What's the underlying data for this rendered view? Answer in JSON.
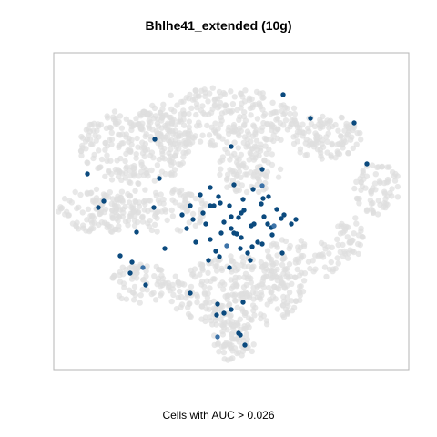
{
  "chart_data": {
    "type": "scatter",
    "title": "Bhlhe41_extended (10g)",
    "caption": "Cells with AUC > 0.026",
    "xlabel": "",
    "ylabel": "",
    "xlim": [
      0,
      390
    ],
    "ylim": [
      0,
      348
    ],
    "colors": {
      "background_cells": "#dedede",
      "high_auc_cells": "#0b4a7e",
      "mid_auc_cells": "#3d73a8",
      "frame": "#b5b5b5"
    },
    "series": [
      {
        "name": "",
        "level": "low",
        "clusters": [
          {
            "cx": 90,
            "cy": 245,
            "rx": 62,
            "ry": 42,
            "n": 260
          },
          {
            "cx": 185,
            "cy": 275,
            "rx": 85,
            "ry": 35,
            "n": 260
          },
          {
            "cx": 215,
            "cy": 220,
            "rx": 35,
            "ry": 30,
            "n": 90
          },
          {
            "cx": 50,
            "cy": 175,
            "rx": 45,
            "ry": 25,
            "n": 110
          },
          {
            "cx": 115,
            "cy": 175,
            "rx": 55,
            "ry": 25,
            "n": 110
          },
          {
            "cx": 300,
            "cy": 255,
            "rx": 40,
            "ry": 25,
            "n": 110
          },
          {
            "cx": 355,
            "cy": 200,
            "rx": 25,
            "ry": 30,
            "n": 70
          },
          {
            "cx": 325,
            "cy": 145,
            "rx": 15,
            "ry": 25,
            "n": 40
          },
          {
            "cx": 200,
            "cy": 85,
            "rx": 75,
            "ry": 40,
            "n": 290
          },
          {
            "cx": 95,
            "cy": 95,
            "rx": 32,
            "ry": 22,
            "n": 70
          },
          {
            "cx": 195,
            "cy": 28,
            "rx": 25,
            "ry": 22,
            "n": 60
          },
          {
            "cx": 270,
            "cy": 120,
            "rx": 45,
            "ry": 25,
            "n": 80
          }
        ]
      },
      {
        "name": "",
        "level": "high",
        "x": [
          252,
          330,
          282,
          195,
          111,
          229,
          229,
          344,
          203,
          37,
          49,
          91,
          122,
          110,
          55,
          116,
          172,
          181,
          193,
          198,
          208,
          219,
          230,
          236,
          245,
          150,
          161,
          172,
          183,
          195,
          206,
          217,
          228,
          239,
          250,
          261,
          141,
          153,
          164,
          176,
          187,
          198,
          209,
          220,
          231,
          242,
          253,
          266,
          172,
          184,
          195,
          206,
          218,
          229,
          240,
          251,
          146,
          156,
          167,
          178,
          190,
          201,
          213,
          224,
          235,
          170,
          182,
          193,
          205,
          216,
          73,
          86,
          98,
          84,
          101,
          150,
          180,
          195,
          208,
          205,
          180,
          187,
          203,
          210,
          179
        ],
        "y": [
          302,
          271,
          276,
          245,
          253,
          220,
          202,
          226,
          167,
          215,
          178,
          151,
          133,
          178,
          185,
          210,
          200,
          190,
          180,
          203,
          187,
          198,
          188,
          190,
          176,
          180,
          192,
          180,
          183,
          168,
          172,
          158,
          182,
          156,
          166,
          160,
          170,
          165,
          172,
          180,
          162,
          150,
          175,
          160,
          168,
          158,
          170,
          165,
          143,
          150,
          155,
          145,
          135,
          138,
          148,
          128,
          155,
          140,
          160,
          130,
          136,
          149,
          128,
          140,
          160,
          120,
          124,
          112,
          133,
          120,
          125,
          118,
          112,
          106,
          93,
          84,
          72,
          66,
          74,
          38,
          36,
          62,
          40,
          27,
          60
        ],
        "mid_indices": [
          6,
          45,
          60,
          72,
          80
        ]
      }
    ]
  }
}
